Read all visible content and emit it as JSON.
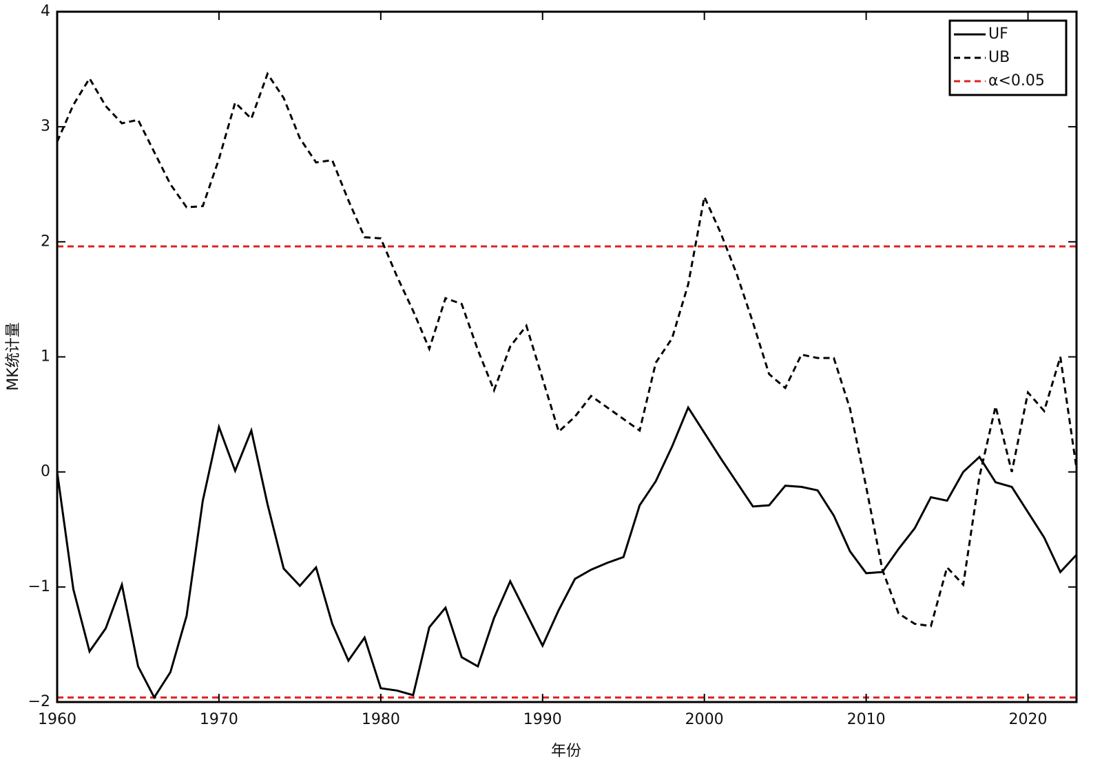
{
  "chart_data": {
    "type": "line",
    "xlabel": "年份",
    "ylabel": "MK统计量",
    "x": [
      1960,
      1961,
      1962,
      1963,
      1964,
      1965,
      1966,
      1967,
      1968,
      1969,
      1970,
      1971,
      1972,
      1973,
      1974,
      1975,
      1976,
      1977,
      1978,
      1979,
      1980,
      1981,
      1982,
      1983,
      1984,
      1985,
      1986,
      1987,
      1988,
      1989,
      1990,
      1991,
      1992,
      1993,
      1994,
      1995,
      1996,
      1997,
      1998,
      1999,
      2000,
      2001,
      2002,
      2003,
      2004,
      2005,
      2006,
      2007,
      2008,
      2009,
      2010,
      2011,
      2012,
      2013,
      2014,
      2015,
      2016,
      2017,
      2018,
      2019,
      2020,
      2021,
      2022,
      2023
    ],
    "series": [
      {
        "name": "UF",
        "color": "#000000",
        "dash": false,
        "values": [
          0,
          -1.02,
          -1.56,
          -1.36,
          -0.98,
          -1.69,
          -1.96,
          -1.74,
          -1.25,
          -0.25,
          0.39,
          0.01,
          0.36,
          -0.28,
          -0.84,
          -0.99,
          -0.83,
          -1.32,
          -1.64,
          -1.44,
          -1.88,
          -1.9,
          -1.94,
          -1.35,
          -1.18,
          -1.61,
          -1.69,
          -1.27,
          -0.95,
          -1.23,
          -1.51,
          -1.2,
          -0.93,
          -0.85,
          -0.79,
          -0.74,
          -0.29,
          -0.08,
          0.22,
          0.56,
          0.34,
          0.12,
          -0.09,
          -0.3,
          -0.29,
          -0.12,
          -0.13,
          -0.16,
          -0.38,
          -0.69,
          -0.88,
          -0.87,
          -0.67,
          -0.49,
          -0.22,
          -0.25,
          0,
          0.13,
          -0.09,
          -0.13,
          -0.35,
          -0.57,
          -0.87,
          -0.72
        ]
      },
      {
        "name": "UB",
        "color": "#000000",
        "dash": true,
        "values": [
          2.87,
          3.19,
          3.42,
          3.18,
          3.03,
          3.06,
          2.78,
          2.5,
          2.3,
          2.31,
          2.72,
          3.21,
          3.07,
          3.46,
          3.25,
          2.9,
          2.69,
          2.71,
          2.36,
          2.04,
          2.03,
          1.7,
          1.4,
          1.07,
          1.51,
          1.46,
          1.06,
          0.71,
          1.09,
          1.27,
          0.81,
          0.35,
          0.48,
          0.66,
          0.56,
          0.46,
          0.36,
          0.95,
          1.16,
          1.63,
          2.39,
          2.08,
          1.72,
          1.3,
          0.85,
          0.73,
          1.02,
          0.99,
          0.99,
          0.55,
          -0.13,
          -0.85,
          -1.23,
          -1.32,
          -1.34,
          -0.83,
          -0.98,
          -0.04,
          0.57,
          0,
          0.69,
          0.53,
          1,
          0.03
        ]
      }
    ],
    "threshold": {
      "name": "α<0.05",
      "color": "#e02020",
      "values": [
        1.96,
        -1.96
      ]
    },
    "xlim": [
      1960,
      2023
    ],
    "ylim": [
      -2,
      4
    ],
    "xticks": [
      1960,
      1970,
      1980,
      1990,
      2000,
      2010,
      2020
    ],
    "yticks": [
      {
        "value": -2,
        "label": "−2"
      },
      {
        "value": -1,
        "label": "−1"
      },
      0,
      1,
      2,
      3,
      4
    ],
    "legend": "upper right"
  }
}
